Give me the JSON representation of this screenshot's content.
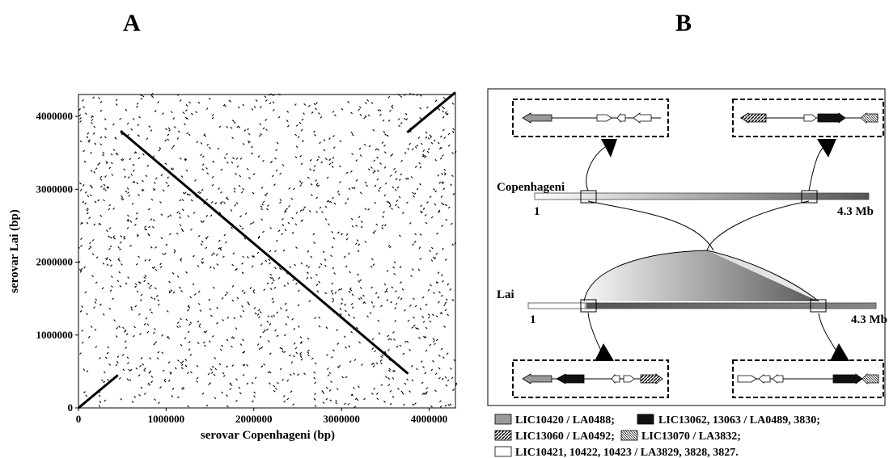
{
  "panels": {
    "a": "A",
    "b": "B"
  },
  "colors": {
    "gray": "#999999",
    "black": "#111111",
    "white": "#ffffff",
    "gradient_light": "#f2f2f2",
    "gradient_dark": "#555555"
  },
  "chart_data": {
    "type": "scatter",
    "title": "",
    "xlabel": "serovar Copenhageni (bp)",
    "ylabel": "serovar Lai (bp)",
    "xlim": [
      0,
      4300000
    ],
    "ylim": [
      0,
      4300000
    ],
    "xticks": [
      0,
      1000000,
      2000000,
      3000000,
      4000000
    ],
    "yticks": [
      0,
      1000000,
      2000000,
      3000000,
      4000000
    ],
    "xtick_labels": [
      "0",
      "1000000",
      "2000000",
      "3000000",
      "4000000"
    ],
    "ytick_labels": [
      "0",
      "1000000",
      "2000000",
      "3000000",
      "4000000"
    ],
    "grid": false,
    "segments": [
      {
        "name": "",
        "x": [
          0,
          450000
        ],
        "y": [
          0,
          450000
        ]
      },
      {
        "name": "",
        "x": [
          480000,
          3760000
        ],
        "y": [
          3800000,
          470000
        ]
      },
      {
        "name": "",
        "x": [
          3750000,
          4300000
        ],
        "y": [
          3780000,
          4330000
        ]
      }
    ],
    "background_points": 1500
  },
  "diagram": {
    "top_genome": {
      "name": "Copenhageni",
      "start": "1",
      "end": "4.3 Mb"
    },
    "bottom_genome": {
      "name": "Lai",
      "start": "1",
      "end": "4.3 Mb"
    }
  },
  "legend": {
    "row1": [
      {
        "fill": "gray",
        "label": "LIC10420 / LA0488;"
      },
      {
        "fill": "black",
        "label": "LIC13062, 13063 / LA0489, 3830;"
      }
    ],
    "row2": [
      {
        "fill": "diag",
        "label": "LIC13060 / LA0492;"
      },
      {
        "fill": "hatch",
        "label": "LIC13070 / LA3832;"
      }
    ],
    "row3": [
      {
        "fill": "white",
        "label": "LIC10421, 10422, 10423 / LA3829, 3828, 3827."
      }
    ]
  }
}
